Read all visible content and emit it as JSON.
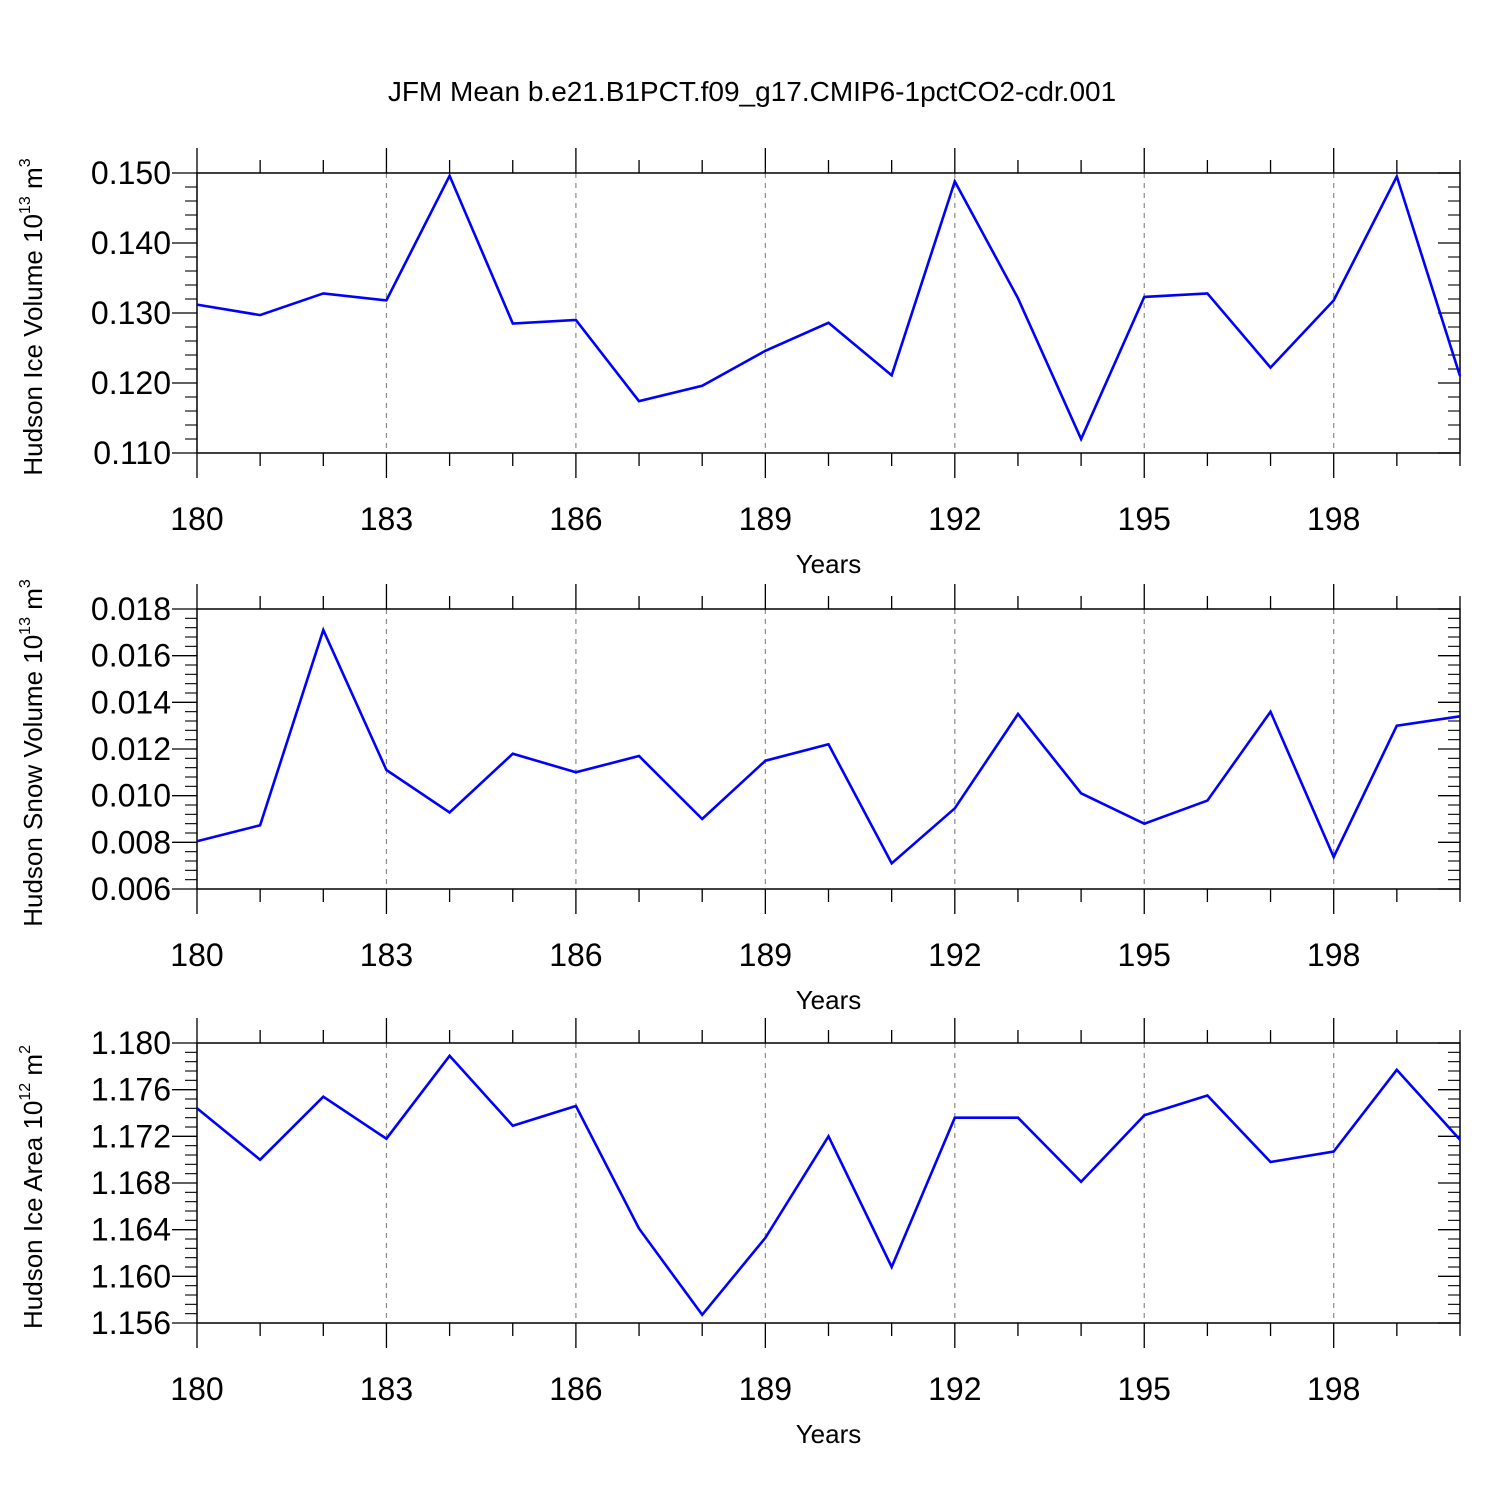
{
  "title": "JFM Mean b.e21.B1PCT.f09_g17.CMIP6-1pctCO2-cdr.001",
  "line_color": "#0000ff",
  "chart_data": [
    {
      "type": "line",
      "ylabel": "Hudson Ice Volume",
      "yunit_base": "10",
      "yunit_exp": "13",
      "yunit_tail": "m",
      "yunit_tail_exp": "3",
      "xlabel": "Years",
      "xlim": [
        180,
        200
      ],
      "ylim": [
        0.11,
        0.15
      ],
      "x_ticks": [
        "180",
        "183",
        "186",
        "189",
        "192",
        "195",
        "198"
      ],
      "y_ticks": [
        "0.110",
        "0.120",
        "0.130",
        "0.140",
        "0.150"
      ],
      "grid": "vertical dashed at major x ticks",
      "series": [
        {
          "x": [
            180,
            181,
            182,
            183,
            184,
            185,
            186,
            187,
            188,
            189,
            190,
            191,
            192,
            193,
            194,
            195,
            196,
            197,
            198,
            199,
            200
          ],
          "values": [
            0.1312,
            0.1297,
            0.1328,
            0.1318,
            0.1496,
            0.1285,
            0.129,
            0.1174,
            0.1196,
            0.1246,
            0.1286,
            0.1211,
            0.1488,
            0.1321,
            0.112,
            0.1323,
            0.1328,
            0.1222,
            0.1318,
            0.1495,
            0.121
          ]
        }
      ]
    },
    {
      "type": "line",
      "ylabel": "Hudson Snow Volume",
      "yunit_base": "10",
      "yunit_exp": "13",
      "yunit_tail": "m",
      "yunit_tail_exp": "3",
      "xlabel": "Years",
      "xlim": [
        180,
        200
      ],
      "ylim": [
        0.006,
        0.018
      ],
      "x_ticks": [
        "180",
        "183",
        "186",
        "189",
        "192",
        "195",
        "198"
      ],
      "y_ticks": [
        "0.006",
        "0.008",
        "0.010",
        "0.012",
        "0.014",
        "0.016",
        "0.018"
      ],
      "grid": "vertical dashed at major x ticks",
      "series": [
        {
          "x": [
            180,
            181,
            182,
            183,
            184,
            185,
            186,
            187,
            188,
            189,
            190,
            191,
            192,
            193,
            194,
            195,
            196,
            197,
            198,
            199,
            200
          ],
          "values": [
            0.00805,
            0.00873,
            0.0171,
            0.0111,
            0.00928,
            0.0118,
            0.011,
            0.0117,
            0.009,
            0.0115,
            0.0122,
            0.0071,
            0.00946,
            0.0135,
            0.0101,
            0.0088,
            0.00979,
            0.0136,
            0.00737,
            0.013,
            0.0134
          ]
        }
      ]
    },
    {
      "type": "line",
      "ylabel": "Hudson Ice Area",
      "yunit_base": "10",
      "yunit_exp": "12",
      "yunit_tail": "m",
      "yunit_tail_exp": "2",
      "xlabel": "Years",
      "xlim": [
        180,
        200
      ],
      "ylim": [
        1.156,
        1.18
      ],
      "x_ticks": [
        "180",
        "183",
        "186",
        "189",
        "192",
        "195",
        "198"
      ],
      "y_ticks": [
        "1.156",
        "1.160",
        "1.164",
        "1.168",
        "1.172",
        "1.176",
        "1.180"
      ],
      "grid": "vertical dashed at major x ticks",
      "series": [
        {
          "x": [
            180,
            181,
            182,
            183,
            184,
            185,
            186,
            187,
            188,
            189,
            190,
            191,
            192,
            193,
            194,
            195,
            196,
            197,
            198,
            199,
            200
          ],
          "values": [
            1.1744,
            1.17,
            1.1754,
            1.1718,
            1.1789,
            1.1729,
            1.1746,
            1.1641,
            1.1567,
            1.1633,
            1.172,
            1.1608,
            1.1736,
            1.1736,
            1.1681,
            1.1738,
            1.1755,
            1.1698,
            1.1707,
            1.1777,
            1.1717
          ]
        }
      ]
    }
  ]
}
